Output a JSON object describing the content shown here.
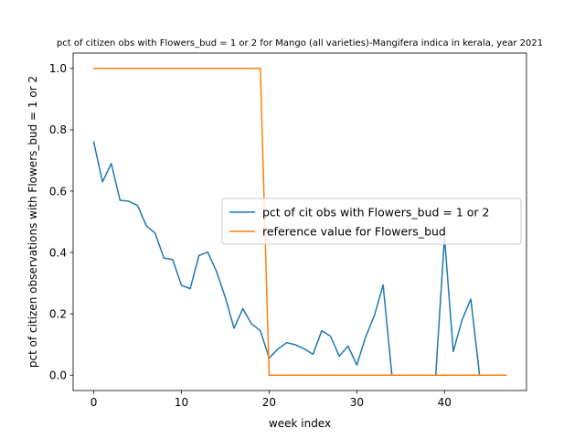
{
  "chart_data": {
    "type": "line",
    "title": "pct of citizen obs with Flowers_bud = 1 or 2 for Mango (all varieties)-Mangifera indica in kerala, year 2021",
    "xlabel": "week index",
    "ylabel": "pct of citizen observations with Flowers_bud = 1 or 2",
    "xlim": [
      -2.35,
      49.35
    ],
    "ylim": [
      -0.05,
      1.05
    ],
    "xticks": [
      0,
      10,
      20,
      30,
      40
    ],
    "yticks": [
      0.0,
      0.2,
      0.4,
      0.6,
      0.8,
      1.0
    ],
    "xtick_labels": [
      "0",
      "10",
      "20",
      "30",
      "40"
    ],
    "ytick_labels": [
      "0.0",
      "0.2",
      "0.4",
      "0.6",
      "0.8",
      "1.0"
    ],
    "grid": false,
    "legend_position": "center-right",
    "x": [
      0,
      1,
      2,
      3,
      4,
      5,
      6,
      7,
      8,
      9,
      10,
      11,
      12,
      13,
      14,
      15,
      16,
      17,
      18,
      19,
      20,
      21,
      22,
      23,
      24,
      25,
      26,
      27,
      28,
      29,
      30,
      31,
      32,
      33,
      34,
      35,
      36,
      37,
      38,
      39,
      40,
      41,
      42,
      43,
      44,
      45,
      46,
      47
    ],
    "series": [
      {
        "name": "pct of cit obs with Flowers_bud = 1 or 2",
        "color": "#1f77b4",
        "values": [
          0.76,
          0.63,
          0.69,
          0.57,
          0.567,
          0.553,
          0.487,
          0.463,
          0.382,
          0.377,
          0.293,
          0.282,
          0.39,
          0.401,
          0.338,
          0.254,
          0.153,
          0.217,
          0.167,
          0.145,
          0.056,
          0.085,
          0.106,
          0.099,
          0.086,
          0.068,
          0.145,
          0.127,
          0.062,
          0.095,
          0.033,
          0.124,
          0.194,
          0.294,
          0.0,
          0.0,
          0.0,
          0.0,
          0.0,
          0.0,
          0.45,
          0.077,
          0.18,
          0.248,
          0.0,
          0.0,
          0.0,
          0.0
        ]
      },
      {
        "name": "reference value for Flowers_bud",
        "color": "#ff7f0e",
        "values": [
          1,
          1,
          1,
          1,
          1,
          1,
          1,
          1,
          1,
          1,
          1,
          1,
          1,
          1,
          1,
          1,
          1,
          1,
          1,
          1,
          0,
          0,
          0,
          0,
          0,
          0,
          0,
          0,
          0,
          0,
          0,
          0,
          0,
          0,
          0,
          0,
          0,
          0,
          0,
          0,
          0,
          0,
          0,
          0,
          0,
          0,
          0,
          0
        ]
      }
    ]
  }
}
